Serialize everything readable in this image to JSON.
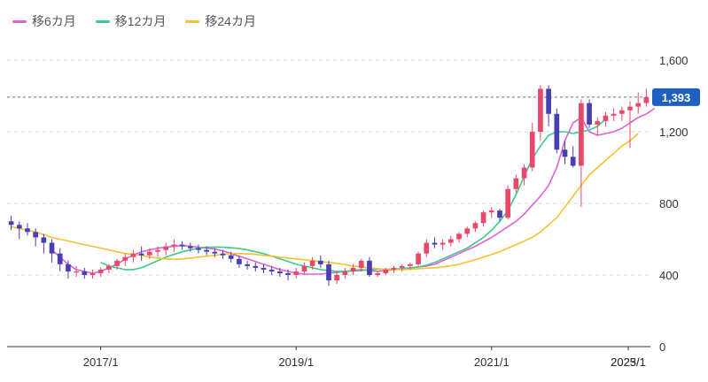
{
  "legend": [
    {
      "label": "移6カ月",
      "color": "#e060d8"
    },
    {
      "label": "移12カ月",
      "color": "#3cc98a"
    },
    {
      "label": "移24カ月",
      "color": "#f2c230"
    }
  ],
  "colors": {
    "up": "#e8496a",
    "down": "#4a3fb0",
    "grid": "#d9d9d9",
    "axis": "#333333",
    "last_price_line": "#5a6f8c",
    "badge": "#1f5fbf"
  },
  "current_price_label": "1,393",
  "chart_data": {
    "type": "candlestick",
    "x_ticks": [
      "2017/1",
      "2019/1",
      "2021/1",
      "2023/1",
      "2025/1"
    ],
    "y_ticks": [
      "0",
      "400",
      "800",
      "1,200",
      "1,600"
    ],
    "ylim": [
      0,
      1600
    ],
    "grid": true,
    "last_price": 1393,
    "series": [
      {
        "name": "移6カ月",
        "color": "#e060d8",
        "start_index": 5,
        "values": [
          540,
          500,
          460,
          430,
          420,
          410,
          420,
          440,
          460,
          490,
          510,
          530,
          540,
          550,
          555,
          560,
          565,
          560,
          555,
          550,
          545,
          535,
          520,
          505,
          490,
          475,
          460,
          445,
          430,
          420,
          410,
          405,
          405,
          405,
          410,
          415,
          420,
          425,
          430,
          425,
          420,
          425,
          430,
          435,
          440,
          445,
          450,
          460,
          480,
          500,
          520,
          540,
          560,
          585,
          610,
          640,
          670,
          700,
          740,
          790,
          840,
          900,
          1000,
          1150,
          1250,
          1280,
          1200,
          1180,
          1190,
          1200,
          1220,
          1250,
          1280,
          1300,
          1330
        ]
      },
      {
        "name": "移12カ月",
        "color": "#3cc98a",
        "start_index": 11,
        "values": [
          470,
          450,
          440,
          430,
          430,
          440,
          460,
          480,
          500,
          515,
          530,
          540,
          550,
          555,
          556,
          555,
          552,
          548,
          540,
          530,
          520,
          505,
          490,
          475,
          460,
          450,
          440,
          430,
          425,
          420,
          420,
          422,
          425,
          430,
          432,
          432,
          433,
          435,
          440,
          445,
          455,
          470,
          490,
          510,
          530,
          550,
          580,
          610,
          650,
          700,
          760,
          850,
          950,
          1050,
          1120,
          1180,
          1200,
          1200,
          1190,
          1200,
          1210,
          1230,
          1270
        ]
      },
      {
        "name": "移24カ月",
        "color": "#f2c230",
        "start_index": 0,
        "values": [
          670,
          660,
          650,
          640,
          625,
          610,
          600,
          590,
          580,
          570,
          560,
          550,
          540,
          530,
          520,
          515,
          510,
          500,
          495,
          490,
          488,
          490,
          495,
          500,
          505,
          510,
          515,
          520,
          520,
          518,
          515,
          510,
          505,
          500,
          495,
          490,
          485,
          480,
          475,
          470,
          465,
          458,
          450,
          445,
          440,
          435,
          432,
          430,
          430,
          432,
          435,
          438,
          440,
          445,
          452,
          460,
          472,
          485,
          500,
          515,
          530,
          550,
          570,
          590,
          610,
          640,
          680,
          720,
          780,
          840,
          900,
          960,
          1000,
          1040,
          1080,
          1120,
          1150,
          1190
        ]
      }
    ],
    "candles": [
      [
        700,
        730,
        650,
        680
      ],
      [
        680,
        700,
        600,
        660
      ],
      [
        660,
        690,
        620,
        640
      ],
      [
        640,
        660,
        560,
        610
      ],
      [
        610,
        630,
        520,
        580
      ],
      [
        580,
        600,
        470,
        520
      ],
      [
        520,
        550,
        420,
        460
      ],
      [
        460,
        480,
        380,
        420
      ],
      [
        420,
        450,
        390,
        420
      ],
      [
        420,
        440,
        380,
        400
      ],
      [
        400,
        430,
        380,
        410
      ],
      [
        410,
        440,
        390,
        430
      ],
      [
        430,
        460,
        410,
        450
      ],
      [
        450,
        490,
        430,
        480
      ],
      [
        480,
        520,
        450,
        500
      ],
      [
        500,
        540,
        470,
        520
      ],
      [
        520,
        560,
        480,
        510
      ],
      [
        510,
        550,
        490,
        530
      ],
      [
        530,
        560,
        500,
        540
      ],
      [
        540,
        580,
        510,
        560
      ],
      [
        560,
        600,
        530,
        570
      ],
      [
        570,
        590,
        540,
        560
      ],
      [
        560,
        580,
        530,
        550
      ],
      [
        550,
        570,
        520,
        540
      ],
      [
        540,
        560,
        510,
        530
      ],
      [
        530,
        550,
        500,
        520
      ],
      [
        520,
        540,
        490,
        510
      ],
      [
        510,
        530,
        470,
        490
      ],
      [
        490,
        510,
        440,
        460
      ],
      [
        460,
        480,
        430,
        450
      ],
      [
        450,
        470,
        420,
        440
      ],
      [
        440,
        460,
        410,
        430
      ],
      [
        430,
        450,
        400,
        420
      ],
      [
        420,
        440,
        390,
        410
      ],
      [
        410,
        430,
        370,
        400
      ],
      [
        400,
        440,
        380,
        420
      ],
      [
        420,
        470,
        400,
        450
      ],
      [
        450,
        500,
        430,
        480
      ],
      [
        480,
        510,
        440,
        460
      ],
      [
        460,
        480,
        340,
        370
      ],
      [
        370,
        420,
        350,
        400
      ],
      [
        400,
        440,
        380,
        420
      ],
      [
        420,
        460,
        400,
        440
      ],
      [
        440,
        490,
        420,
        480
      ],
      [
        480,
        500,
        390,
        400
      ],
      [
        400,
        420,
        390,
        410
      ],
      [
        410,
        440,
        400,
        430
      ],
      [
        430,
        450,
        410,
        440
      ],
      [
        440,
        460,
        420,
        450
      ],
      [
        450,
        470,
        430,
        460
      ],
      [
        460,
        530,
        450,
        520
      ],
      [
        520,
        600,
        500,
        580
      ],
      [
        580,
        610,
        550,
        570
      ],
      [
        570,
        600,
        540,
        580
      ],
      [
        580,
        620,
        560,
        600
      ],
      [
        600,
        640,
        580,
        630
      ],
      [
        630,
        670,
        610,
        660
      ],
      [
        660,
        700,
        640,
        690
      ],
      [
        690,
        760,
        670,
        750
      ],
      [
        750,
        780,
        720,
        760
      ],
      [
        760,
        770,
        700,
        720
      ],
      [
        720,
        900,
        710,
        880
      ],
      [
        880,
        960,
        860,
        940
      ],
      [
        940,
        1020,
        900,
        1000
      ],
      [
        1000,
        1250,
        980,
        1200
      ],
      [
        1200,
        1460,
        1150,
        1440
      ],
      [
        1440,
        1460,
        1230,
        1300
      ],
      [
        1300,
        1330,
        1080,
        1100
      ],
      [
        1100,
        1150,
        1020,
        1060
      ],
      [
        1060,
        1120,
        1000,
        1010
      ],
      [
        1010,
        1380,
        780,
        1360
      ],
      [
        1360,
        1380,
        1220,
        1240
      ],
      [
        1240,
        1280,
        1180,
        1260
      ],
      [
        1260,
        1310,
        1230,
        1290
      ],
      [
        1290,
        1330,
        1260,
        1300
      ],
      [
        1300,
        1340,
        1260,
        1320
      ],
      [
        1320,
        1370,
        1110,
        1340
      ],
      [
        1340,
        1420,
        1300,
        1360
      ],
      [
        1360,
        1440,
        1340,
        1393
      ]
    ]
  }
}
